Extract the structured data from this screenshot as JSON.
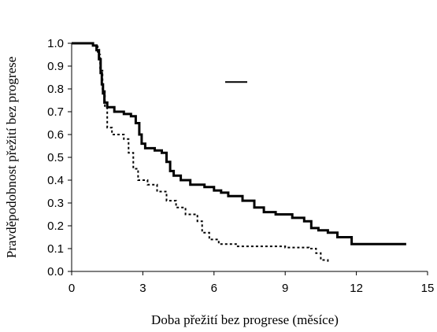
{
  "chart_data": {
    "type": "line",
    "title": "",
    "xlabel": "Doba přežití bez progrese (měsíce)",
    "ylabel": "Pravděpodobnost přežití bez progrese",
    "xlim": [
      0,
      15
    ],
    "ylim": [
      0,
      1.0
    ],
    "xticks": [
      "0",
      "3",
      "6",
      "9",
      "12",
      "15"
    ],
    "yticks": [
      "0.0",
      "0.1",
      "0.2",
      "0.3",
      "0.4",
      "0.5",
      "0.6",
      "0.7",
      "0.8",
      "0.9",
      "1.0"
    ],
    "grid": false,
    "legend": {
      "placement": "top-center",
      "entries": [
        {
          "style": "solid",
          "label": ""
        }
      ]
    },
    "series": [
      {
        "style": "solid",
        "points": [
          [
            0,
            1.0
          ],
          [
            0.9,
            0.99
          ],
          [
            1.05,
            0.97
          ],
          [
            1.15,
            0.93
          ],
          [
            1.22,
            0.87
          ],
          [
            1.27,
            0.82
          ],
          [
            1.32,
            0.78
          ],
          [
            1.38,
            0.74
          ],
          [
            1.5,
            0.72
          ],
          [
            1.8,
            0.7
          ],
          [
            2.2,
            0.69
          ],
          [
            2.5,
            0.68
          ],
          [
            2.7,
            0.65
          ],
          [
            2.85,
            0.6
          ],
          [
            2.95,
            0.56
          ],
          [
            3.1,
            0.54
          ],
          [
            3.5,
            0.53
          ],
          [
            3.8,
            0.52
          ],
          [
            4.0,
            0.48
          ],
          [
            4.15,
            0.44
          ],
          [
            4.3,
            0.42
          ],
          [
            4.6,
            0.4
          ],
          [
            5.0,
            0.38
          ],
          [
            5.6,
            0.37
          ],
          [
            6.0,
            0.355
          ],
          [
            6.3,
            0.345
          ],
          [
            6.6,
            0.33
          ],
          [
            7.2,
            0.31
          ],
          [
            7.7,
            0.28
          ],
          [
            8.1,
            0.26
          ],
          [
            8.6,
            0.25
          ],
          [
            9.3,
            0.235
          ],
          [
            9.8,
            0.22
          ],
          [
            10.1,
            0.19
          ],
          [
            10.4,
            0.18
          ],
          [
            10.8,
            0.17
          ],
          [
            11.2,
            0.15
          ],
          [
            11.8,
            0.12
          ],
          [
            14.1,
            0.12
          ]
        ]
      },
      {
        "style": "dashed",
        "points": [
          [
            0,
            1.0
          ],
          [
            0.9,
            0.99
          ],
          [
            1.1,
            0.95
          ],
          [
            1.2,
            0.88
          ],
          [
            1.3,
            0.8
          ],
          [
            1.4,
            0.72
          ],
          [
            1.5,
            0.63
          ],
          [
            1.7,
            0.6
          ],
          [
            2.2,
            0.58
          ],
          [
            2.4,
            0.52
          ],
          [
            2.6,
            0.45
          ],
          [
            2.8,
            0.4
          ],
          [
            3.2,
            0.38
          ],
          [
            3.6,
            0.35
          ],
          [
            4.0,
            0.31
          ],
          [
            4.4,
            0.28
          ],
          [
            4.8,
            0.25
          ],
          [
            5.3,
            0.22
          ],
          [
            5.5,
            0.17
          ],
          [
            5.8,
            0.14
          ],
          [
            6.2,
            0.12
          ],
          [
            7.0,
            0.11
          ],
          [
            8.5,
            0.11
          ],
          [
            9.0,
            0.105
          ],
          [
            10.0,
            0.1
          ],
          [
            10.3,
            0.08
          ],
          [
            10.5,
            0.05
          ],
          [
            10.8,
            0.04
          ]
        ]
      }
    ]
  }
}
